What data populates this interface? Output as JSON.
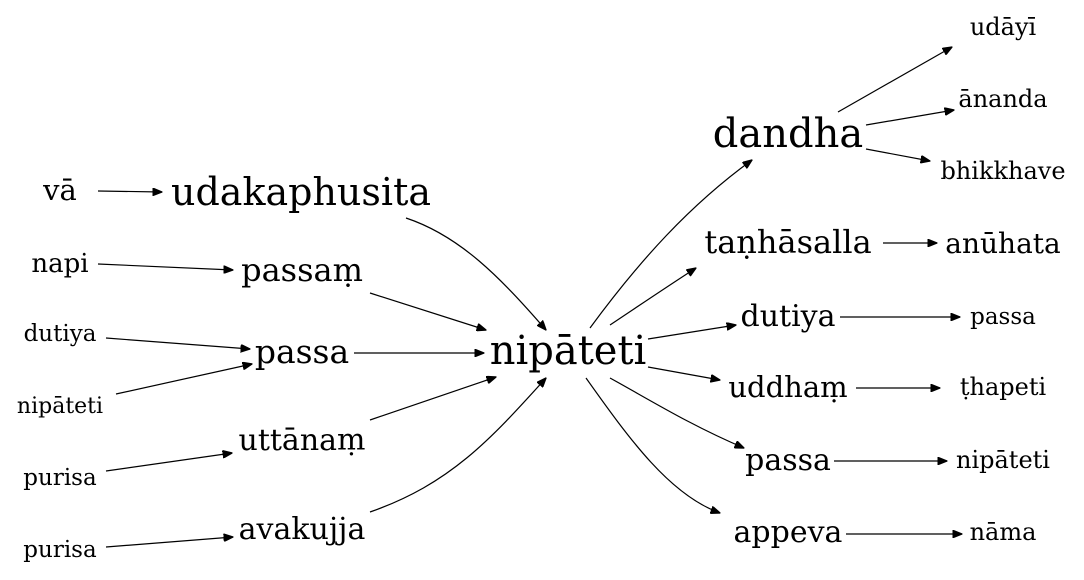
{
  "graph": {
    "center": "nipāteti",
    "nodes": {
      "va": "vā",
      "udakaphusita": "udakaphusita",
      "napi": "napi",
      "passam": "passaṃ",
      "dutiya_l": "dutiya",
      "passa_l": "passa",
      "nipateti_l": "nipāteti",
      "purisa_1": "purisa",
      "uttanam": "uttānaṃ",
      "purisa_2": "purisa",
      "avakujja": "avakujja",
      "nipateti": "nipāteti",
      "dandha": "dandha",
      "udayi": "udāyī",
      "ananda": "ānanda",
      "bhikkhave": "bhikkhave",
      "tanhasalla": "taṇhāsalla",
      "anuhata": "anūhata",
      "dutiya_r": "dutiya",
      "passa_r1": "passa",
      "uddham": "uddhaṃ",
      "thapeti": "ṭhapeti",
      "passa_r2": "passa",
      "nipateti_r": "nipāteti",
      "appeva": "appeva",
      "nama": "nāma"
    },
    "edges": [
      [
        "va",
        "udakaphusita"
      ],
      [
        "napi",
        "passam"
      ],
      [
        "dutiya_l",
        "passa_l"
      ],
      [
        "nipateti_l",
        "passa_l"
      ],
      [
        "purisa_1",
        "uttanam"
      ],
      [
        "purisa_2",
        "avakujja"
      ],
      [
        "udakaphusita",
        "nipateti"
      ],
      [
        "passam",
        "nipateti"
      ],
      [
        "passa_l",
        "nipateti"
      ],
      [
        "uttanam",
        "nipateti"
      ],
      [
        "avakujja",
        "nipateti"
      ],
      [
        "nipateti",
        "dandha"
      ],
      [
        "nipateti",
        "tanhasalla"
      ],
      [
        "nipateti",
        "dutiya_r"
      ],
      [
        "nipateti",
        "uddham"
      ],
      [
        "nipateti",
        "passa_r2"
      ],
      [
        "nipateti",
        "appeva"
      ],
      [
        "dandha",
        "udayi"
      ],
      [
        "dandha",
        "ananda"
      ],
      [
        "dandha",
        "bhikkhave"
      ],
      [
        "tanhasalla",
        "anuhata"
      ],
      [
        "dutiya_r",
        "passa_r1"
      ],
      [
        "uddham",
        "thapeti"
      ],
      [
        "passa_r2",
        "nipateti_r"
      ],
      [
        "appeva",
        "nama"
      ]
    ]
  }
}
